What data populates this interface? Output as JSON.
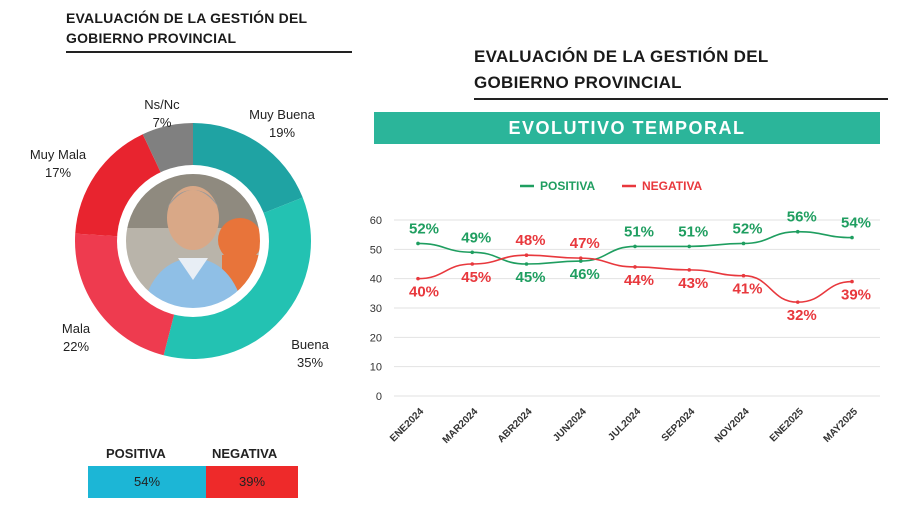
{
  "left_title": "EVALUACIÓN DE LA GESTIÓN DEL GOBIERNO PROVINCIAL",
  "right_title": "EVALUACIÓN DE LA GESTIÓN DEL GOBIERNO PROVINCIAL",
  "banner": "EVOLUTIVO TEMPORAL",
  "colors": {
    "positive": "#1f9e60",
    "negative": "#e8383d",
    "banner": "#2bb59a",
    "muy_buena": "#1fa3a3",
    "buena": "#23c2b2",
    "mala": "#ee3b4f",
    "muy_mala": "#e8242f",
    "nsnc": "#808080",
    "positiva_box": "#1cb6d6",
    "negativa_box": "#ee2a2a"
  },
  "chart_data": [
    {
      "type": "pie",
      "labels": [
        "Muy Buena",
        "Buena",
        "Mala",
        "Muy Mala",
        "Ns/Nc"
      ],
      "values": [
        19,
        35,
        22,
        17,
        7
      ],
      "value_labels": [
        "19%",
        "35%",
        "22%",
        "17%",
        "7%"
      ],
      "donut": true,
      "center_image": "photo-of-governor"
    },
    {
      "type": "line",
      "categories": [
        "ENE2024",
        "MAR2024",
        "ABR2024",
        "JUN2024",
        "JUL2024",
        "SEP2024",
        "NOV2024",
        "ENE2025",
        "MAY2025"
      ],
      "series": [
        {
          "name": "POSITIVA",
          "values": [
            52,
            49,
            45,
            46,
            51,
            51,
            52,
            56,
            54
          ]
        },
        {
          "name": "NEGATIVA",
          "values": [
            40,
            45,
            48,
            47,
            44,
            43,
            41,
            32,
            39
          ]
        }
      ],
      "ylim": [
        0,
        60
      ],
      "yticks": [
        0,
        10,
        20,
        30,
        40,
        50,
        60
      ],
      "legend": "top",
      "grid": true
    }
  ],
  "summary": {
    "positiva_label": "POSITIVA",
    "negativa_label": "NEGATIVA",
    "positiva_value": "54%",
    "negativa_value": "39%"
  }
}
